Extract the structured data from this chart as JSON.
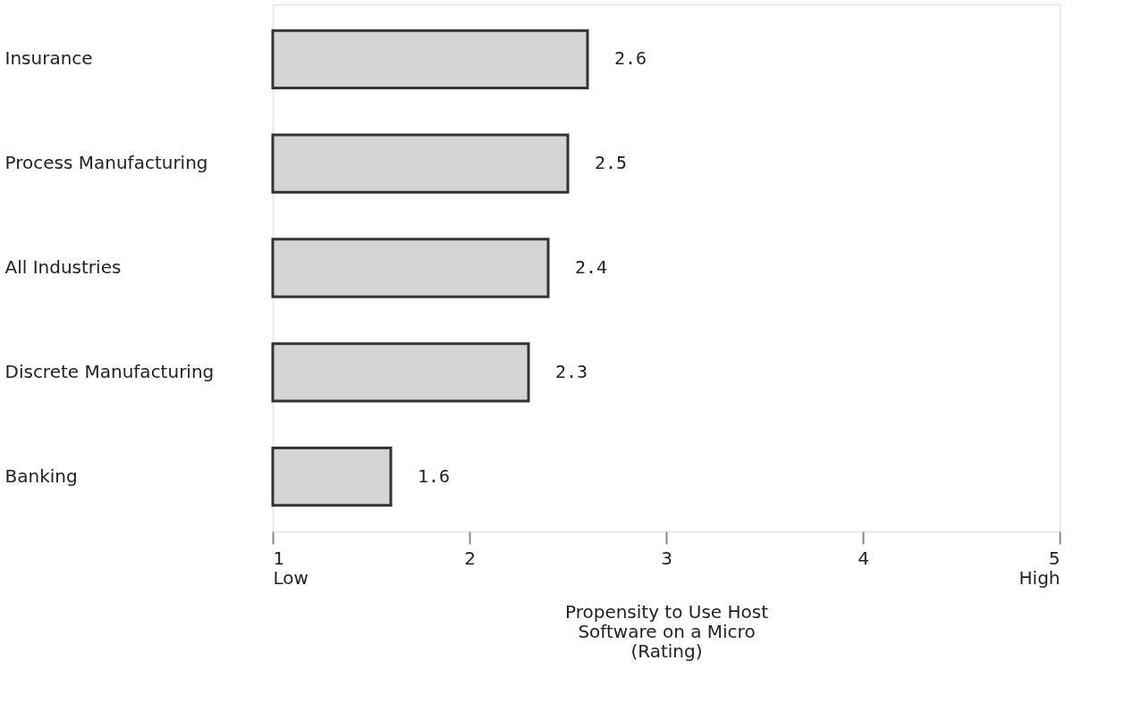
{
  "chart_data": {
    "type": "bar",
    "orientation": "horizontal",
    "xlabel": "Propensity to Use Host\nSoftware on a Micro\n(Rating)",
    "categories": [
      "Insurance",
      "Process Manufacturing",
      "All Industries",
      "Discrete Manufacturing",
      "Banking"
    ],
    "values": [
      2.6,
      2.5,
      2.4,
      2.3,
      1.6
    ],
    "color": "#d4d4d4",
    "data_labels": true,
    "xlim": [
      1,
      5
    ],
    "xticks": [
      {
        "value": 1,
        "label": "1\nLow"
      },
      2,
      3,
      4,
      {
        "value": 5,
        "label": "5\nHigh"
      }
    ],
    "grid": false
  }
}
